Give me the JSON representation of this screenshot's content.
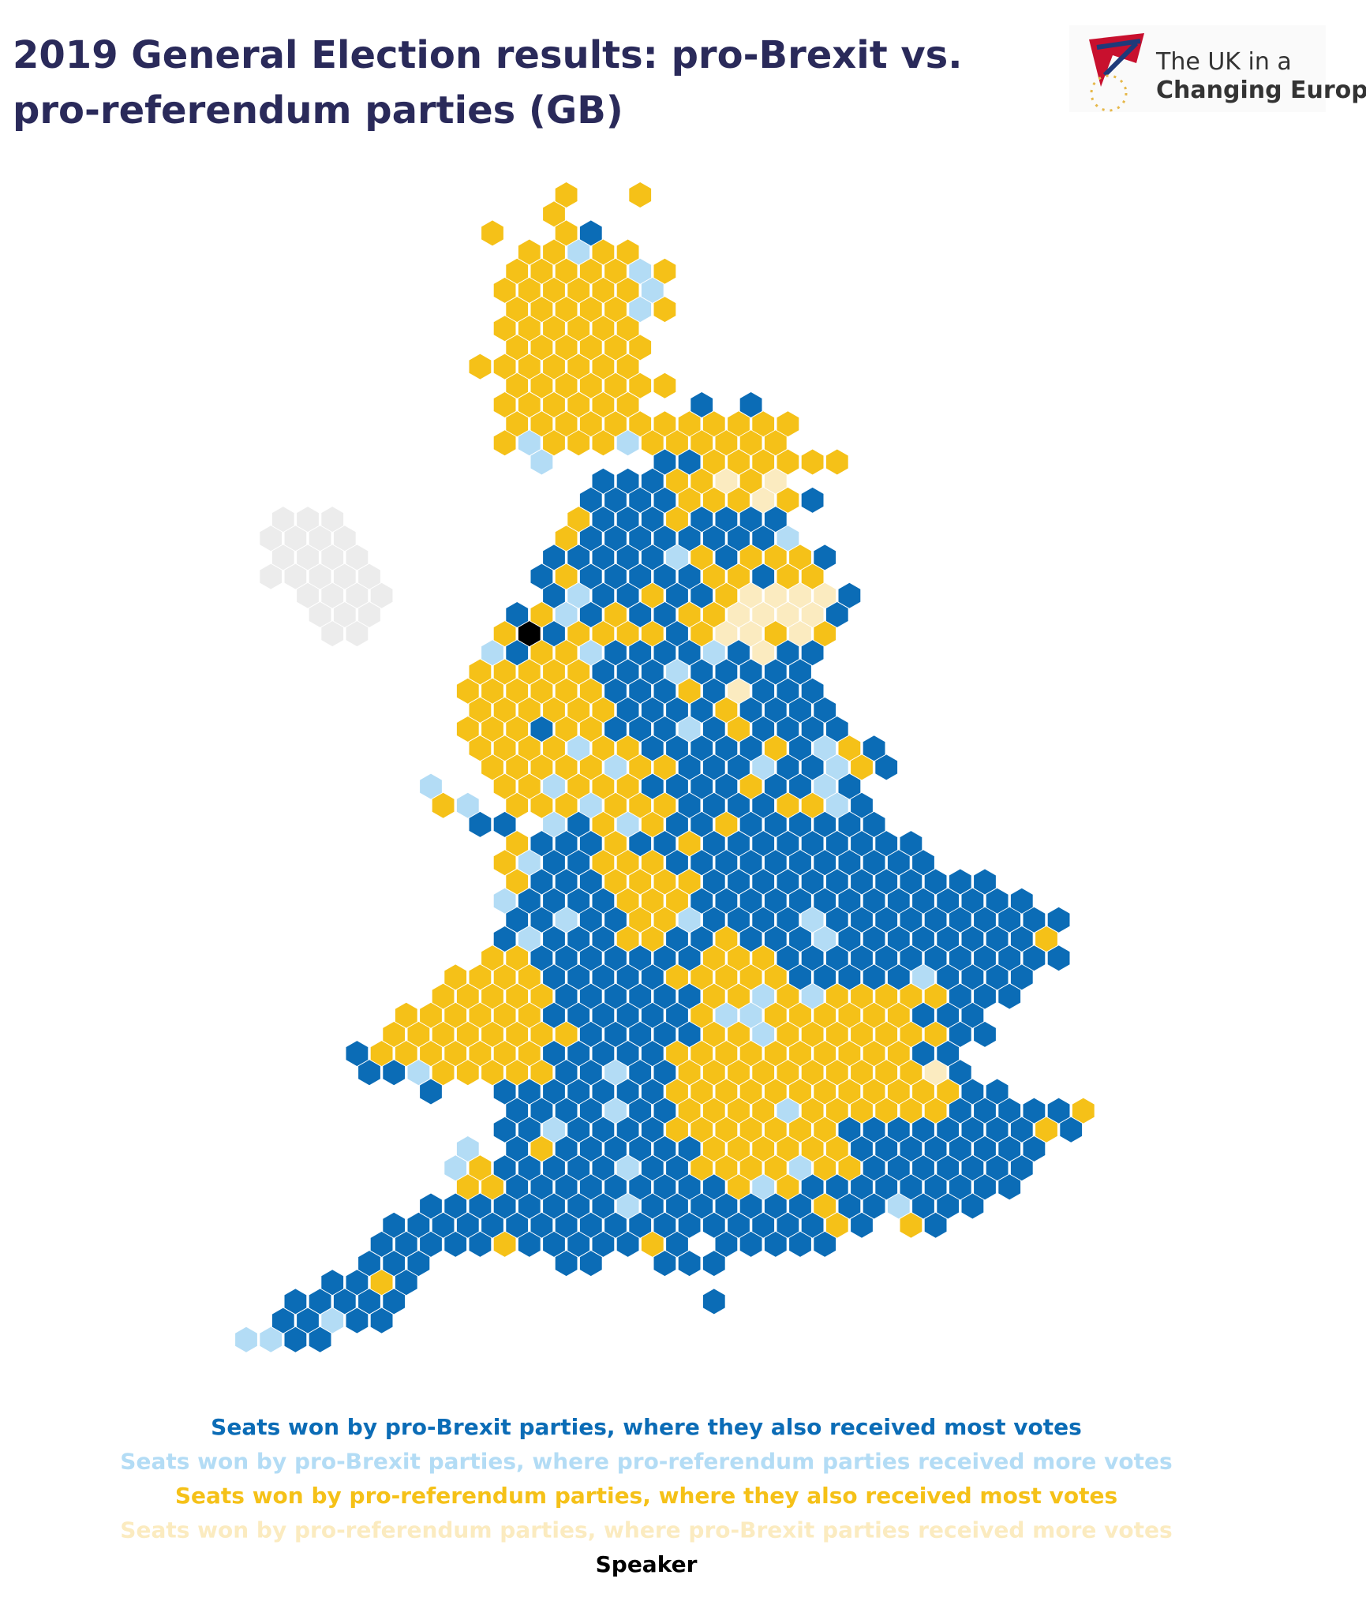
{
  "header": {
    "title_lines": [
      "2019 General Election results: pro-Brexit vs.",
      "pro-referendum parties (GB)"
    ]
  },
  "logo": {
    "line1": "The UK in a",
    "line2": "Changing Europe"
  },
  "legend": [
    {
      "label": "Seats won by pro-Brexit parties, where they also received most votes",
      "color": "#0b6cb6"
    },
    {
      "label": "Seats won by pro-Brexit parties, where pro-referendum parties received more votes",
      "color": "#b3dcf5"
    },
    {
      "label": "Seats won by pro-referendum parties, where they also received most votes",
      "color": "#f5c118"
    },
    {
      "label": "Seats won by pro-referendum parties, where pro-Brexit parties received more votes",
      "color": "#fbebc0"
    },
    {
      "label": "Speaker",
      "color": "#000000"
    }
  ]
}
